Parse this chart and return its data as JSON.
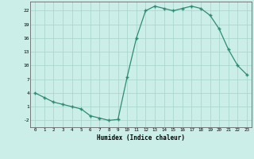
{
  "x": [
    0,
    1,
    2,
    3,
    4,
    5,
    6,
    7,
    8,
    9,
    10,
    11,
    12,
    13,
    14,
    15,
    16,
    17,
    18,
    19,
    20,
    21,
    22,
    23
  ],
  "y": [
    4,
    3,
    2,
    1.5,
    1,
    0.5,
    -1,
    -1.5,
    -2,
    -1.8,
    7.5,
    16,
    22,
    23,
    22.5,
    22,
    22.5,
    23,
    22.5,
    21,
    18,
    13.5,
    10,
    8
  ],
  "line_color": "#2e8b74",
  "marker_color": "#2e8b74",
  "bg_color": "#cceee8",
  "grid_color": "#aad8d0",
  "xlabel": "Humidex (Indice chaleur)",
  "ytick_labels": [
    "-2",
    "1",
    "4",
    "7",
    "10",
    "13",
    "16",
    "19",
    "22"
  ],
  "ytick_vals": [
    -2,
    1,
    4,
    7,
    10,
    13,
    16,
    19,
    22
  ],
  "xtick_vals": [
    0,
    1,
    2,
    3,
    4,
    5,
    6,
    7,
    8,
    9,
    10,
    11,
    12,
    13,
    14,
    15,
    16,
    17,
    18,
    19,
    20,
    21,
    22,
    23
  ],
  "xlim": [
    -0.5,
    23.5
  ],
  "ylim": [
    -3.5,
    24.0
  ],
  "figsize": [
    3.2,
    2.0
  ],
  "dpi": 100
}
